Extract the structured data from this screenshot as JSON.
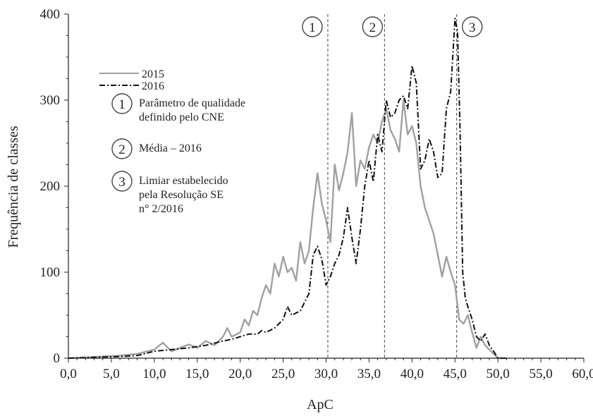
{
  "chart_data": {
    "type": "line",
    "xlabel": "ApC",
    "ylabel": "Frequência de classes",
    "xlim": [
      0,
      60
    ],
    "ylim": [
      0,
      400
    ],
    "x_ticks": [
      "0,0",
      "5,0",
      "10,0",
      "15,0",
      "20,0",
      "25,0",
      "30,0",
      "35,0",
      "40,0",
      "45,0",
      "50,0",
      "55,0",
      "60,0"
    ],
    "y_ticks": [
      "0",
      "100",
      "200",
      "300",
      "400"
    ],
    "series": [
      {
        "name": "2015",
        "color": "#a0a0a0",
        "style": "solid",
        "points": [
          [
            0,
            0
          ],
          [
            2,
            1
          ],
          [
            4,
            2
          ],
          [
            6,
            3
          ],
          [
            8,
            5
          ],
          [
            10,
            10
          ],
          [
            11,
            18
          ],
          [
            12,
            8
          ],
          [
            13,
            12
          ],
          [
            14,
            16
          ],
          [
            15,
            12
          ],
          [
            16,
            20
          ],
          [
            17,
            15
          ],
          [
            18,
            25
          ],
          [
            18.5,
            35
          ],
          [
            19,
            25
          ],
          [
            20,
            30
          ],
          [
            20.5,
            45
          ],
          [
            21,
            38
          ],
          [
            21.5,
            55
          ],
          [
            22,
            50
          ],
          [
            22.5,
            70
          ],
          [
            23,
            85
          ],
          [
            23.5,
            75
          ],
          [
            24,
            110
          ],
          [
            24.5,
            95
          ],
          [
            25,
            118
          ],
          [
            25.5,
            100
          ],
          [
            26,
            105
          ],
          [
            26.5,
            90
          ],
          [
            27,
            135
          ],
          [
            27.5,
            110
          ],
          [
            28,
            125
          ],
          [
            28.5,
            175
          ],
          [
            29,
            215
          ],
          [
            29.5,
            180
          ],
          [
            30,
            160
          ],
          [
            30.5,
            135
          ],
          [
            31,
            225
          ],
          [
            31.5,
            195
          ],
          [
            32,
            215
          ],
          [
            32.5,
            240
          ],
          [
            33,
            285
          ],
          [
            33.5,
            200
          ],
          [
            34,
            230
          ],
          [
            34.5,
            220
          ],
          [
            35,
            245
          ],
          [
            35.5,
            260
          ],
          [
            36,
            250
          ],
          [
            36.5,
            275
          ],
          [
            37,
            290
          ],
          [
            37.5,
            265
          ],
          [
            38,
            255
          ],
          [
            38.5,
            240
          ],
          [
            39,
            300
          ],
          [
            39.5,
            260
          ],
          [
            40,
            270
          ],
          [
            40.5,
            250
          ],
          [
            41,
            200
          ],
          [
            41.5,
            175
          ],
          [
            42,
            160
          ],
          [
            42.5,
            145
          ],
          [
            43,
            120
          ],
          [
            43.5,
            95
          ],
          [
            44,
            118
          ],
          [
            44.5,
            100
          ],
          [
            45,
            85
          ],
          [
            45.5,
            45
          ],
          [
            46,
            40
          ],
          [
            46.5,
            50
          ],
          [
            47,
            30
          ],
          [
            47.5,
            12
          ],
          [
            48,
            25
          ],
          [
            48.5,
            15
          ],
          [
            49,
            10
          ],
          [
            49.5,
            5
          ],
          [
            50,
            0
          ],
          [
            51,
            0
          ]
        ]
      },
      {
        "name": "2016",
        "color": "#111111",
        "style": "dashdot",
        "points": [
          [
            0,
            0
          ],
          [
            3,
            1
          ],
          [
            6,
            2
          ],
          [
            8,
            3
          ],
          [
            10,
            8
          ],
          [
            12,
            10
          ],
          [
            14,
            12
          ],
          [
            16,
            15
          ],
          [
            18,
            20
          ],
          [
            19,
            22
          ],
          [
            20,
            25
          ],
          [
            21,
            28
          ],
          [
            22,
            28
          ],
          [
            22.5,
            32
          ],
          [
            23,
            30
          ],
          [
            24,
            35
          ],
          [
            25,
            45
          ],
          [
            25.5,
            60
          ],
          [
            26,
            50
          ],
          [
            27,
            55
          ],
          [
            28,
            75
          ],
          [
            28.5,
            120
          ],
          [
            29,
            130
          ],
          [
            29.5,
            115
          ],
          [
            30,
            85
          ],
          [
            30.5,
            95
          ],
          [
            31,
            110
          ],
          [
            31.5,
            120
          ],
          [
            32,
            140
          ],
          [
            32.5,
            175
          ],
          [
            33,
            140
          ],
          [
            33.5,
            110
          ],
          [
            34,
            150
          ],
          [
            34.5,
            200
          ],
          [
            35,
            230
          ],
          [
            35.5,
            205
          ],
          [
            36,
            260
          ],
          [
            36.5,
            240
          ],
          [
            37,
            300
          ],
          [
            37.5,
            280
          ],
          [
            38,
            285
          ],
          [
            38.5,
            300
          ],
          [
            39,
            305
          ],
          [
            39.5,
            290
          ],
          [
            40,
            340
          ],
          [
            40.5,
            320
          ],
          [
            41,
            220
          ],
          [
            41.5,
            230
          ],
          [
            42,
            255
          ],
          [
            42.5,
            240
          ],
          [
            43,
            210
          ],
          [
            43.5,
            215
          ],
          [
            44,
            290
          ],
          [
            44.5,
            310
          ],
          [
            45,
            395
          ],
          [
            45.3,
            380
          ],
          [
            45.6,
            260
          ],
          [
            45.9,
            100
          ],
          [
            46.2,
            70
          ],
          [
            46.5,
            60
          ],
          [
            47,
            45
          ],
          [
            47.5,
            25
          ],
          [
            48,
            20
          ],
          [
            48.5,
            28
          ],
          [
            49,
            15
          ],
          [
            49.5,
            8
          ],
          [
            50,
            0
          ],
          [
            51,
            0
          ]
        ]
      }
    ],
    "reference_lines": [
      {
        "x": 30.2,
        "label": "1"
      },
      {
        "x": 36.8,
        "label": "2"
      },
      {
        "x": 45.2,
        "label": "3"
      }
    ],
    "legend": {
      "placement": "top-left",
      "series_entries": [
        {
          "label": "2015",
          "color": "#a0a0a0",
          "style": "solid"
        },
        {
          "label": "2016",
          "color": "#111111",
          "style": "dashdot"
        }
      ],
      "annotations": [
        {
          "number": "1",
          "lines": [
            "Parâmetro de qualidade",
            "definido pelo CNE"
          ]
        },
        {
          "number": "2",
          "lines": [
            "Média – 2016"
          ]
        },
        {
          "number": "3",
          "lines": [
            "Limiar estabelecido",
            "pela Resolução SE",
            "n° 2/2016"
          ]
        }
      ]
    },
    "grid": false
  }
}
